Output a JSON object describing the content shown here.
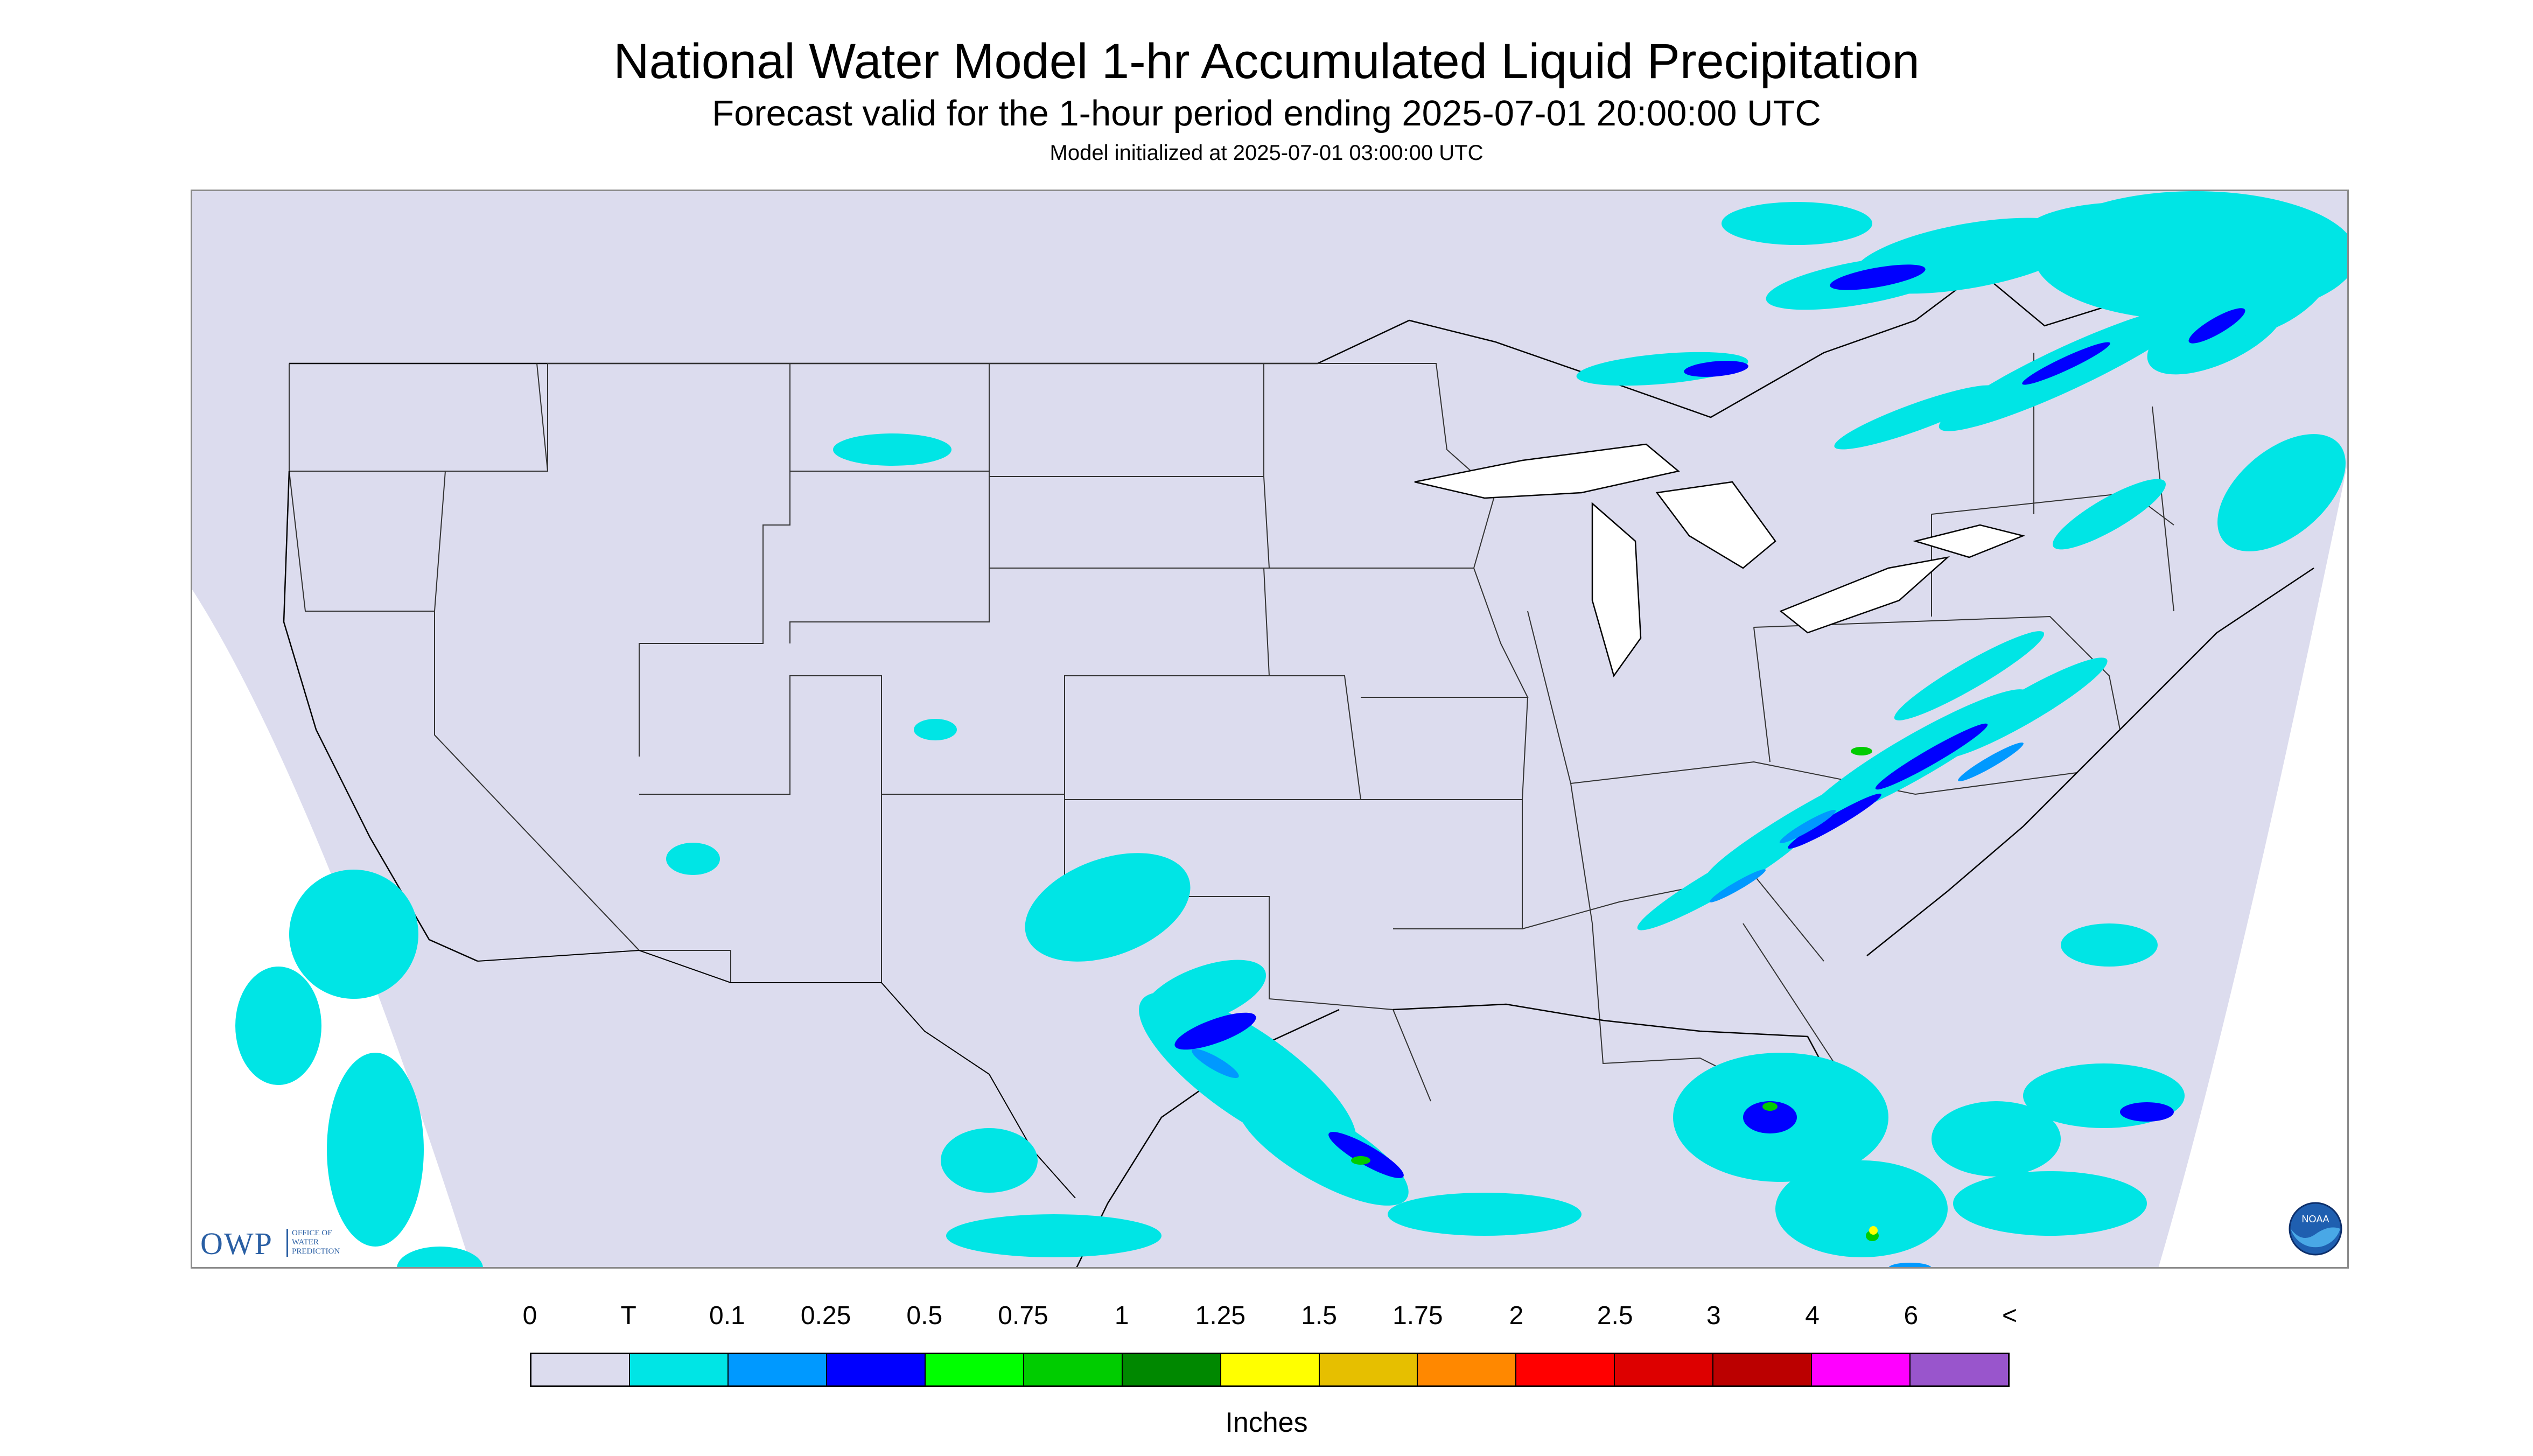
{
  "title": "National Water Model 1-hr Accumulated Liquid Precipitation",
  "subtitle": "Forecast valid for the 1-hour period ending 2025-07-01 20:00:00 UTC",
  "init_line": "Model initialized at 2025-07-01 03:00:00 UTC",
  "map": {
    "background_color": "#dcdcee",
    "precip_colors": {
      "trace": "#00e5e5",
      "light": "#0099ff",
      "moderate": "#0000ff",
      "heavy": "#00cc00",
      "extreme": "#ffff00"
    }
  },
  "legend": {
    "labels": [
      "0",
      "T",
      "0.1",
      "0.25",
      "0.5",
      "0.75",
      "1",
      "1.25",
      "1.5",
      "1.75",
      "2",
      "2.5",
      "3",
      "4",
      "6",
      "<"
    ],
    "colors": [
      "#dcdcee",
      "#00e5e5",
      "#0099ff",
      "#0000ff",
      "#00ff00",
      "#00cc00",
      "#008800",
      "#ffff00",
      "#e6bf00",
      "#ff8800",
      "#ff0000",
      "#dd0000",
      "#bb0000",
      "#ff00ff",
      "#9955cc"
    ],
    "units": "Inches"
  },
  "logos": {
    "owp_letters": "OWP",
    "owp_text": "OFFICE OF\nWATER\nPREDICTION",
    "noaa_text": "NOAA"
  }
}
